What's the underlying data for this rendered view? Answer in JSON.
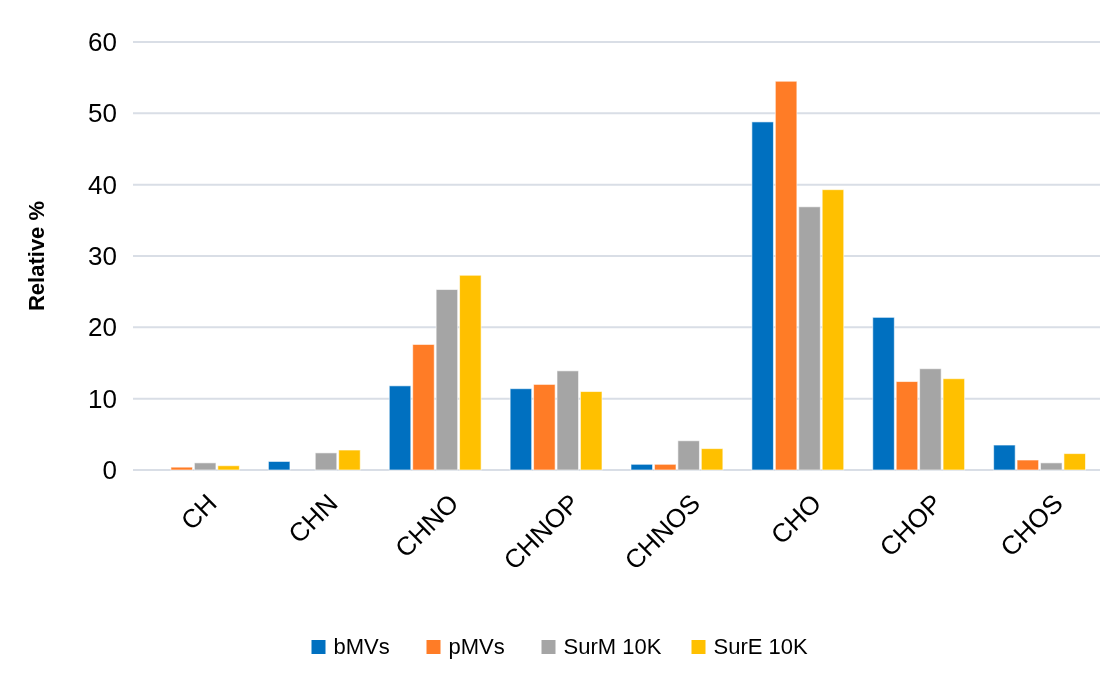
{
  "chart_data": {
    "type": "bar",
    "ylabel": "Relative %",
    "categories": [
      "CH",
      "CHN",
      "CHNO",
      "CHNOP",
      "CHNOS",
      "CHO",
      "CHOP",
      "CHOS"
    ],
    "series": [
      {
        "name": "bMVs",
        "color": "#0070c0",
        "values": [
          0,
          1.2,
          11.8,
          11.4,
          0.8,
          48.8,
          21.4,
          3.5
        ]
      },
      {
        "name": "pMVs",
        "color": "#ff7c26",
        "values": [
          0.4,
          0,
          17.6,
          12.0,
          0.8,
          54.5,
          12.4,
          1.4
        ]
      },
      {
        "name": "SurM 10K",
        "color": "#a5a5a5",
        "values": [
          1.0,
          2.4,
          25.3,
          13.9,
          4.1,
          36.9,
          14.2,
          1.0
        ]
      },
      {
        "name": "SurE 10K",
        "color": "#ffc000",
        "values": [
          0.6,
          2.8,
          27.3,
          11.0,
          3.0,
          39.3,
          12.8,
          2.3
        ]
      }
    ],
    "ylim": [
      0,
      60
    ],
    "yticks": [
      0,
      10,
      20,
      30,
      40,
      50,
      60
    ],
    "grid": "y",
    "legend": "bottom"
  }
}
